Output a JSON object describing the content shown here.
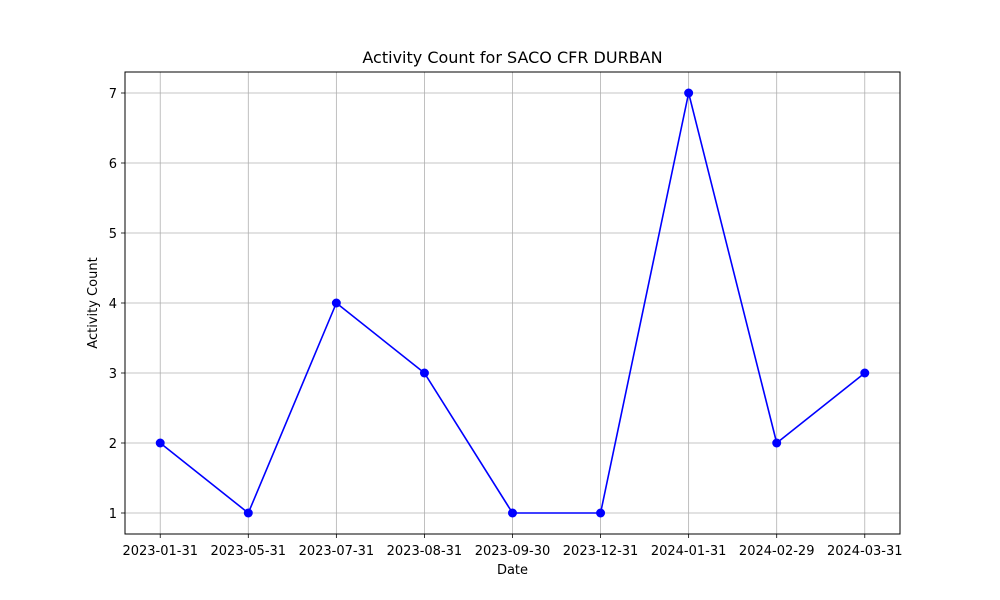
{
  "chart_data": {
    "type": "line",
    "title": "Activity Count for SACO CFR DURBAN",
    "xlabel": "Date",
    "ylabel": "Activity Count",
    "categories": [
      "2023-01-31",
      "2023-05-31",
      "2023-07-31",
      "2023-08-31",
      "2023-09-30",
      "2023-12-31",
      "2024-01-31",
      "2024-02-29",
      "2024-03-31"
    ],
    "series": [
      {
        "values": [
          2,
          1,
          4,
          3,
          1,
          1,
          7,
          2,
          3
        ],
        "color": "#0000ff",
        "marker": "circle"
      }
    ],
    "ylim": [
      0.7,
      7.3
    ],
    "yticks": [
      1,
      2,
      3,
      4,
      5,
      6,
      7
    ],
    "grid": true,
    "grid_color": "#b0b0b0"
  }
}
